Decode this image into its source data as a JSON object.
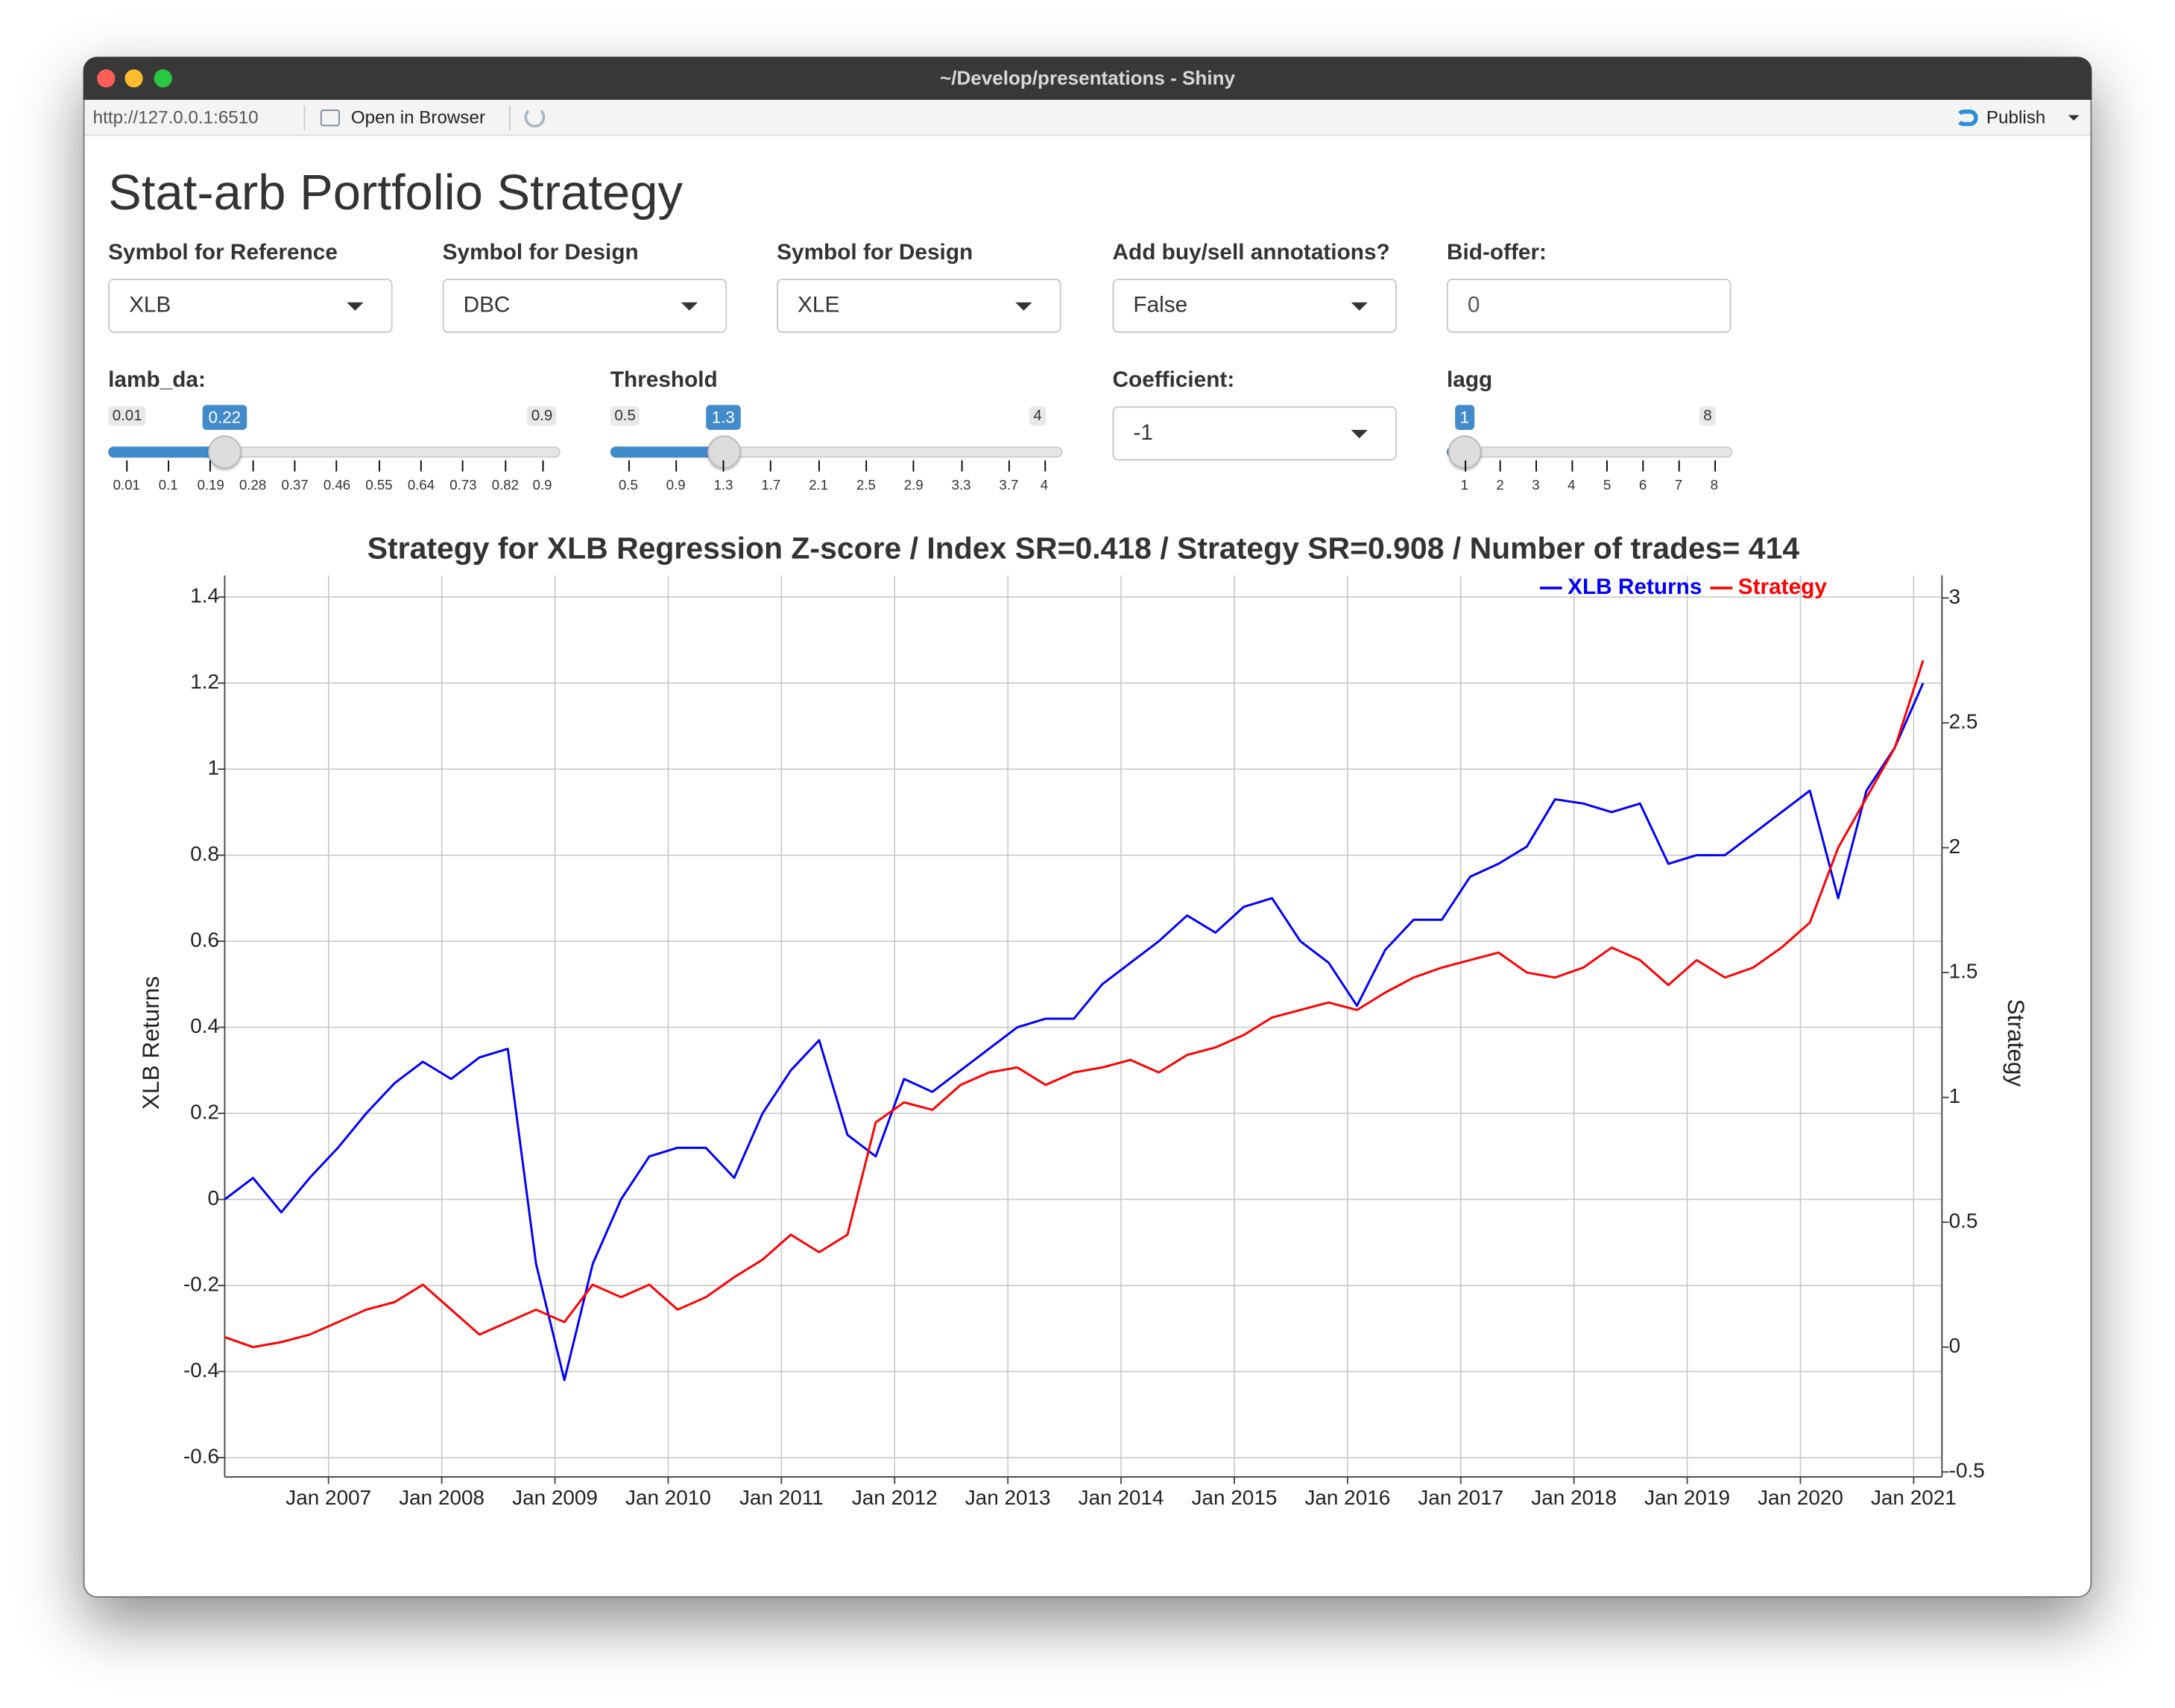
{
  "window": {
    "title": "~/Develop/presentations - Shiny"
  },
  "toolbar": {
    "url": "http://127.0.0.1:6510",
    "open_browser": "Open in Browser",
    "publish": "Publish"
  },
  "app": {
    "title": "Stat-arb Portfolio Strategy",
    "inputs": [
      {
        "label": "Symbol for Reference",
        "value": "XLB"
      },
      {
        "label": "Symbol for Design",
        "value": "DBC"
      },
      {
        "label": "Symbol for Design",
        "value": "XLE"
      },
      {
        "label": "Add buy/sell annotations?",
        "value": "False"
      },
      {
        "label": "Bid-offer:",
        "value": 0
      }
    ],
    "coefficient": {
      "label": "Coefficient:",
      "value": -1
    },
    "sliders": [
      {
        "label": "lamb_da:",
        "min": 0.01,
        "max": 0.9,
        "value": 0.22,
        "ticks": [
          0.01,
          0.1,
          0.19,
          0.28,
          0.37,
          0.46,
          0.55,
          0.64,
          0.73,
          0.82,
          0.9
        ]
      },
      {
        "label": "Threshold",
        "min": 0.5,
        "max": 4,
        "value": 1.3,
        "ticks": [
          0.5,
          0.9,
          1.3,
          1.7,
          2.1,
          2.5,
          2.9,
          3.3,
          3.7,
          4
        ]
      },
      {
        "label": "lagg",
        "min": 1,
        "max": 8,
        "value": 1,
        "ticks": [
          1,
          2,
          3,
          4,
          5,
          6,
          7,
          8
        ]
      }
    ]
  },
  "chart_data": {
    "type": "line",
    "title": "Strategy for XLB Regression Z-score / Index SR=0.418 / Strategy SR=0.908 / Number of trades= 414",
    "y_label": "XLB Returns",
    "y2_label": "Strategy",
    "legend": "top-right",
    "grid": true,
    "x": [
      "2006-02",
      "2006-05",
      "2006-08",
      "2006-11",
      "2007-02",
      "2007-05",
      "2007-08",
      "2007-11",
      "2008-02",
      "2008-05",
      "2008-08",
      "2008-11",
      "2009-02",
      "2009-05",
      "2009-08",
      "2009-11",
      "2010-02",
      "2010-05",
      "2010-08",
      "2010-11",
      "2011-02",
      "2011-05",
      "2011-08",
      "2011-11",
      "2012-02",
      "2012-05",
      "2012-08",
      "2012-11",
      "2013-02",
      "2013-05",
      "2013-08",
      "2013-11",
      "2014-02",
      "2014-05",
      "2014-08",
      "2014-11",
      "2015-02",
      "2015-05",
      "2015-08",
      "2015-11",
      "2016-02",
      "2016-05",
      "2016-08",
      "2016-11",
      "2017-02",
      "2017-05",
      "2017-08",
      "2017-11",
      "2018-02",
      "2018-05",
      "2018-08",
      "2018-11",
      "2019-02",
      "2019-05",
      "2019-08",
      "2019-11",
      "2020-02",
      "2020-05",
      "2020-08",
      "2020-11",
      "2021-02"
    ],
    "series": [
      {
        "name": "XLB Returns",
        "color": "#0000ff",
        "values": [
          0.0,
          0.05,
          -0.03,
          0.05,
          0.12,
          0.2,
          0.27,
          0.32,
          0.28,
          0.33,
          0.35,
          -0.15,
          -0.42,
          -0.15,
          0.0,
          0.1,
          0.12,
          0.12,
          0.05,
          0.2,
          0.3,
          0.37,
          0.15,
          0.1,
          0.28,
          0.25,
          0.3,
          0.35,
          0.4,
          0.42,
          0.42,
          0.5,
          0.55,
          0.6,
          0.66,
          0.62,
          0.68,
          0.7,
          0.6,
          0.55,
          0.45,
          0.58,
          0.65,
          0.65,
          0.75,
          0.78,
          0.82,
          0.93,
          0.92,
          0.9,
          0.92,
          0.78,
          0.8,
          0.8,
          0.85,
          0.9,
          0.95,
          0.7,
          0.95,
          1.05,
          1.2
        ]
      },
      {
        "name": "Strategy",
        "color": "#ff0000",
        "axis": "y2",
        "values": [
          0.04,
          0.0,
          0.02,
          0.05,
          0.1,
          0.15,
          0.18,
          0.25,
          0.15,
          0.05,
          0.1,
          0.15,
          0.1,
          0.25,
          0.2,
          0.25,
          0.15,
          0.2,
          0.28,
          0.35,
          0.45,
          0.38,
          0.45,
          0.9,
          0.98,
          0.95,
          1.05,
          1.1,
          1.12,
          1.05,
          1.1,
          1.12,
          1.15,
          1.1,
          1.17,
          1.2,
          1.25,
          1.32,
          1.35,
          1.38,
          1.35,
          1.42,
          1.48,
          1.52,
          1.55,
          1.58,
          1.5,
          1.48,
          1.52,
          1.6,
          1.55,
          1.45,
          1.55,
          1.48,
          1.52,
          1.6,
          1.7,
          2.0,
          2.2,
          2.4,
          2.75
        ]
      }
    ],
    "xlim": [
      "2006-02",
      "2021-04"
    ],
    "xticks": [
      {
        "value": "2007-01",
        "label": "Jan 2007"
      },
      {
        "value": "2008-01",
        "label": "Jan 2008"
      },
      {
        "value": "2009-01",
        "label": "Jan 2009"
      },
      {
        "value": "2010-01",
        "label": "Jan 2010"
      },
      {
        "value": "2011-01",
        "label": "Jan 2011"
      },
      {
        "value": "2012-01",
        "label": "Jan 2012"
      },
      {
        "value": "2013-01",
        "label": "Jan 2013"
      },
      {
        "value": "2014-01",
        "label": "Jan 2014"
      },
      {
        "value": "2015-01",
        "label": "Jan 2015"
      },
      {
        "value": "2016-01",
        "label": "Jan 2016"
      },
      {
        "value": "2017-01",
        "label": "Jan 2017"
      },
      {
        "value": "2018-01",
        "label": "Jan 2018"
      },
      {
        "value": "2019-01",
        "label": "Jan 2019"
      },
      {
        "value": "2020-01",
        "label": "Jan 2020"
      },
      {
        "value": "2021-01",
        "label": "Jan 2021"
      }
    ],
    "ylim": [
      -0.645,
      1.45
    ],
    "yticks": [
      -0.6,
      -0.4,
      -0.2,
      0,
      0.2,
      0.4,
      0.6,
      0.8,
      1,
      1.2,
      1.4
    ],
    "y2lim": [
      -0.52,
      3.09
    ],
    "y2ticks": [
      -0.5,
      0,
      0.5,
      1,
      1.5,
      2,
      2.5,
      3
    ]
  }
}
